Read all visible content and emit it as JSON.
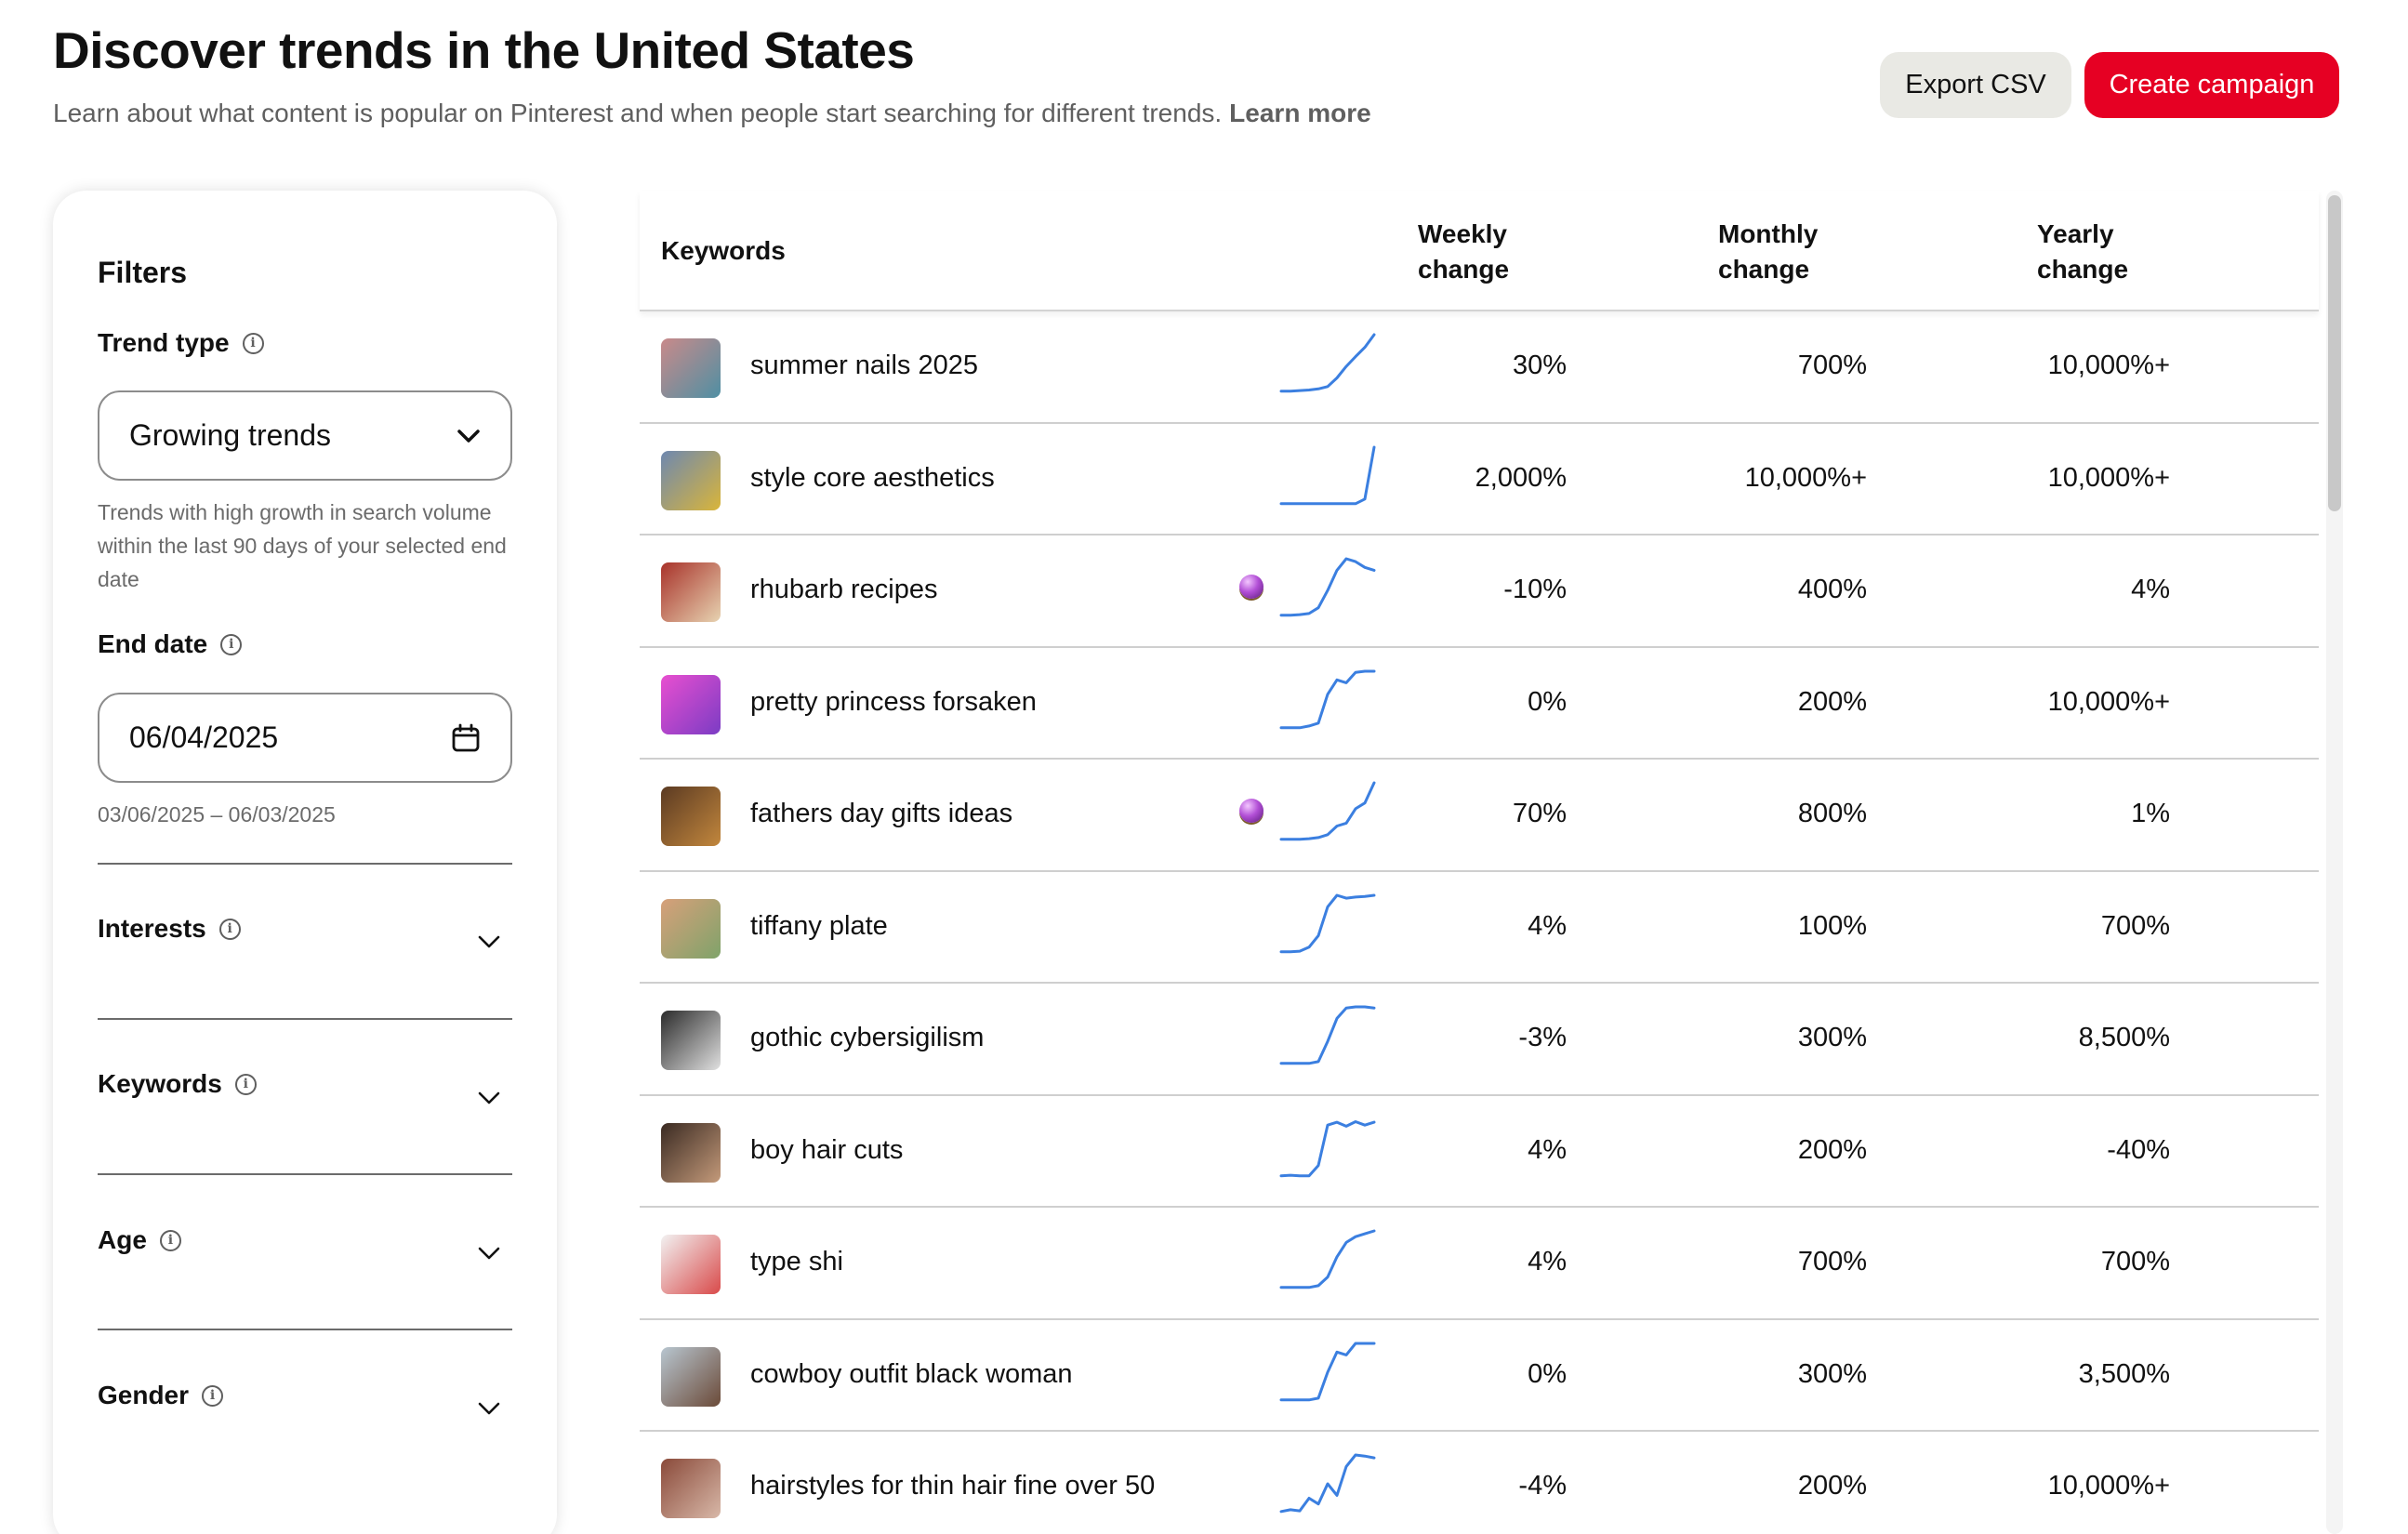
{
  "header": {
    "title": "Discover trends in the United States",
    "subtitle": "Learn about what content is popular on Pinterest and when people start searching for different trends.",
    "learn_more": "Learn more",
    "export_label": "Export CSV",
    "create_label": "Create campaign"
  },
  "filters": {
    "title": "Filters",
    "trend_type": {
      "label": "Trend type",
      "value": "Growing trends",
      "help": "Trends with high growth in search volume within the last 90 days of your selected end date"
    },
    "end_date": {
      "label": "End date",
      "value": "06/04/2025",
      "range": "03/06/2025 – 06/03/2025"
    },
    "sections": [
      "Interests",
      "Keywords",
      "Age",
      "Gender"
    ]
  },
  "table": {
    "headers": {
      "keywords": "Keywords",
      "weekly": "Weekly change",
      "monthly": "Monthly change",
      "yearly": "Yearly change"
    },
    "colors": {
      "line": "#3b7fe0",
      "crystal": "#b24fd6"
    },
    "rows": [
      {
        "keyword": "summer nails 2025",
        "weekly": "30%",
        "monthly": "700%",
        "yearly": "10,000%+",
        "crystal": false,
        "thumb": [
          "#c98a8a",
          "#4f8fa3"
        ],
        "trend": [
          0.02,
          0.02,
          0.03,
          0.04,
          0.06,
          0.1,
          0.25,
          0.45,
          0.62,
          0.78,
          1.0
        ]
      },
      {
        "keyword": "style core aesthetics",
        "weekly": "2,000%",
        "monthly": "10,000%+",
        "yearly": "10,000%+",
        "crystal": false,
        "thumb": [
          "#6e88b0",
          "#d9b53a"
        ],
        "trend": [
          0.02,
          0.02,
          0.02,
          0.02,
          0.02,
          0.02,
          0.02,
          0.02,
          0.02,
          0.1,
          1.0
        ]
      },
      {
        "keyword": "rhubarb recipes",
        "weekly": "-10%",
        "monthly": "400%",
        "yearly": "4%",
        "crystal": true,
        "thumb": [
          "#a8322a",
          "#e7d3b1"
        ],
        "trend": [
          0.02,
          0.02,
          0.03,
          0.05,
          0.15,
          0.45,
          0.8,
          1.0,
          0.95,
          0.85,
          0.8
        ]
      },
      {
        "keyword": "pretty princess forsaken",
        "weekly": "0%",
        "monthly": "200%",
        "yearly": "10,000%+",
        "crystal": false,
        "thumb": [
          "#e84fd0",
          "#7b3cc4"
        ],
        "trend": [
          0.02,
          0.02,
          0.02,
          0.05,
          0.1,
          0.6,
          0.85,
          0.8,
          0.98,
          1.0,
          1.0
        ]
      },
      {
        "keyword": "fathers day gifts ideas",
        "weekly": "70%",
        "monthly": "800%",
        "yearly": "1%",
        "crystal": true,
        "thumb": [
          "#5b3a22",
          "#c2873d"
        ],
        "trend": [
          0.02,
          0.02,
          0.02,
          0.03,
          0.05,
          0.1,
          0.25,
          0.3,
          0.55,
          0.65,
          1.0
        ]
      },
      {
        "keyword": "tiffany plate",
        "weekly": "4%",
        "monthly": "100%",
        "yearly": "700%",
        "crystal": false,
        "thumb": [
          "#d7a07a",
          "#7fa36a"
        ],
        "trend": [
          0.02,
          0.02,
          0.03,
          0.1,
          0.3,
          0.8,
          1.0,
          0.95,
          0.97,
          0.98,
          1.0
        ]
      },
      {
        "keyword": "gothic cybersigilism",
        "weekly": "-3%",
        "monthly": "300%",
        "yearly": "8,500%",
        "crystal": false,
        "thumb": [
          "#2b2b2b",
          "#e0e0e0"
        ],
        "trend": [
          0.02,
          0.02,
          0.02,
          0.02,
          0.05,
          0.4,
          0.8,
          0.98,
          1.0,
          1.0,
          0.98
        ]
      },
      {
        "keyword": "boy hair cuts",
        "weekly": "4%",
        "monthly": "200%",
        "yearly": "-40%",
        "crystal": false,
        "thumb": [
          "#3a2a22",
          "#c49a7a"
        ],
        "trend": [
          0.02,
          0.03,
          0.02,
          0.02,
          0.2,
          0.9,
          0.95,
          0.88,
          0.96,
          0.9,
          0.95
        ]
      },
      {
        "keyword": "type shi",
        "weekly": "4%",
        "monthly": "700%",
        "yearly": "700%",
        "crystal": false,
        "thumb": [
          "#f2f2f2",
          "#d94a4a"
        ],
        "trend": [
          0.02,
          0.02,
          0.02,
          0.02,
          0.05,
          0.2,
          0.55,
          0.8,
          0.9,
          0.95,
          1.0
        ]
      },
      {
        "keyword": "cowboy outfit black woman",
        "weekly": "0%",
        "monthly": "300%",
        "yearly": "3,500%",
        "crystal": false,
        "thumb": [
          "#b8c6d0",
          "#6b4a38"
        ],
        "trend": [
          0.02,
          0.02,
          0.02,
          0.02,
          0.05,
          0.5,
          0.85,
          0.8,
          1.0,
          1.0,
          1.0
        ]
      },
      {
        "keyword": "hairstyles for thin hair fine over 50",
        "weekly": "-4%",
        "monthly": "200%",
        "yearly": "10,000%+",
        "crystal": false,
        "thumb": [
          "#8a4a3a",
          "#d8b8a8"
        ],
        "trend": [
          0.02,
          0.05,
          0.03,
          0.25,
          0.15,
          0.5,
          0.3,
          0.8,
          1.0,
          0.98,
          0.95
        ]
      }
    ]
  }
}
